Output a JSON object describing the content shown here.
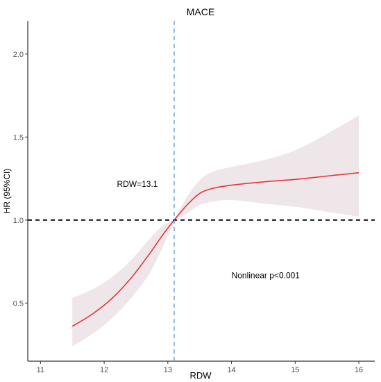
{
  "chart_data": {
    "type": "line",
    "title": "MACE",
    "xlabel": "RDW",
    "ylabel": "HR (95%CI)",
    "xlim": [
      10.8,
      16.25
    ],
    "ylim": [
      0.15,
      2.2
    ],
    "xticks": [
      11,
      12,
      13,
      14,
      15,
      16
    ],
    "yticks": [
      0.5,
      1.0,
      1.5,
      2.0
    ],
    "ytick_labels": [
      "0.5",
      "1.0",
      "1.5",
      "2.0"
    ],
    "grid": false,
    "series": [
      {
        "color": "#e8333a",
        "x": [
          11.5,
          11.8,
          12.1,
          12.4,
          12.7,
          12.9,
          13.1,
          13.3,
          13.5,
          13.7,
          14.0,
          14.5,
          15.0,
          15.5,
          16.0
        ],
        "y": [
          0.36,
          0.43,
          0.52,
          0.64,
          0.79,
          0.9,
          1.0,
          1.09,
          1.16,
          1.19,
          1.21,
          1.23,
          1.245,
          1.265,
          1.285
        ],
        "lower": [
          0.24,
          0.31,
          0.4,
          0.52,
          0.67,
          0.82,
          0.98,
          1.04,
          1.09,
          1.11,
          1.12,
          1.1,
          1.08,
          1.05,
          1.02
        ],
        "upper": [
          0.53,
          0.58,
          0.65,
          0.75,
          0.88,
          0.96,
          1.01,
          1.14,
          1.24,
          1.29,
          1.32,
          1.36,
          1.42,
          1.52,
          1.63
        ]
      }
    ],
    "band_color": "#efe6ea",
    "reference_lines": {
      "horizontal": {
        "y": 1.0,
        "color": "#000000",
        "style": "dashed"
      },
      "vertical": {
        "x": 13.1,
        "color": "#5b9bd5",
        "style": "dashed"
      }
    },
    "annotations": [
      {
        "text": "RDW=13.1",
        "x": 12.2,
        "y": 1.2
      },
      {
        "text": "Nonlinear p<0.001",
        "x": 14.0,
        "y": 0.65
      }
    ]
  }
}
